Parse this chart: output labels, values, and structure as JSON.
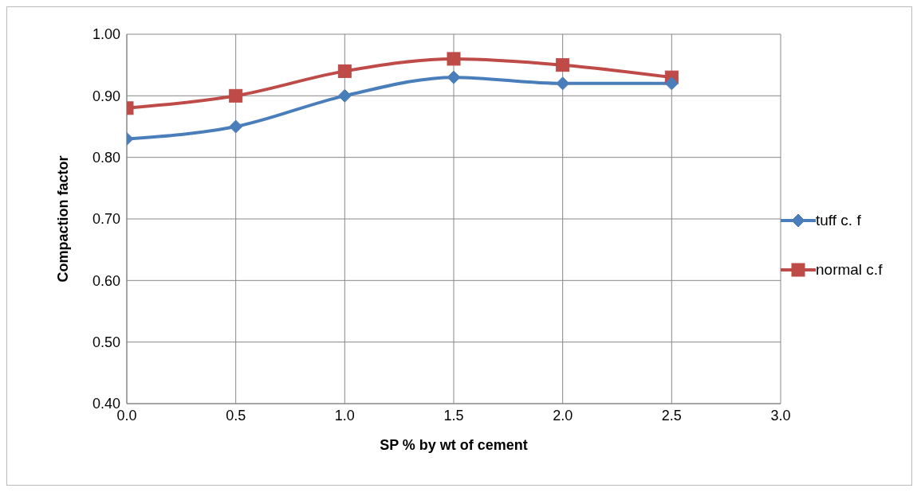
{
  "chart_data": {
    "type": "line",
    "xlabel": "SP % by wt of cement",
    "ylabel": "Compaction factor",
    "x": [
      0,
      0.5,
      1,
      1.5,
      2,
      2.5
    ],
    "series": [
      {
        "name": "tuff c. f",
        "color": "#4a7ebb",
        "marker": "diamond",
        "values": [
          0.83,
          0.85,
          0.9,
          0.93,
          0.92,
          0.92
        ]
      },
      {
        "name": "normal c.f",
        "color": "#be4b48",
        "marker": "square",
        "values": [
          0.88,
          0.9,
          0.94,
          0.96,
          0.95,
          0.93
        ]
      }
    ],
    "xlim": [
      0,
      3
    ],
    "xticks": [
      {
        "value": 0,
        "label": "0.0"
      },
      {
        "value": 0.5,
        "label": "0.5"
      },
      {
        "value": 1,
        "label": "1.0"
      },
      {
        "value": 1.5,
        "label": "1.5"
      },
      {
        "value": 2,
        "label": "2.0"
      },
      {
        "value": 2.5,
        "label": "2.5"
      },
      {
        "value": 3,
        "label": "3.0"
      }
    ],
    "ylim": [
      0.4,
      1
    ],
    "yticks": [
      {
        "value": 0.4,
        "label": "0.40"
      },
      {
        "value": 0.5,
        "label": "0.50"
      },
      {
        "value": 0.6,
        "label": "0.60"
      },
      {
        "value": 0.7,
        "label": "0.70"
      },
      {
        "value": 0.8,
        "label": "0.80"
      },
      {
        "value": 0.9,
        "label": "0.90"
      },
      {
        "value": 1,
        "label": "1.00"
      }
    ],
    "grid": true,
    "legend": "right",
    "line_style": "solid"
  }
}
